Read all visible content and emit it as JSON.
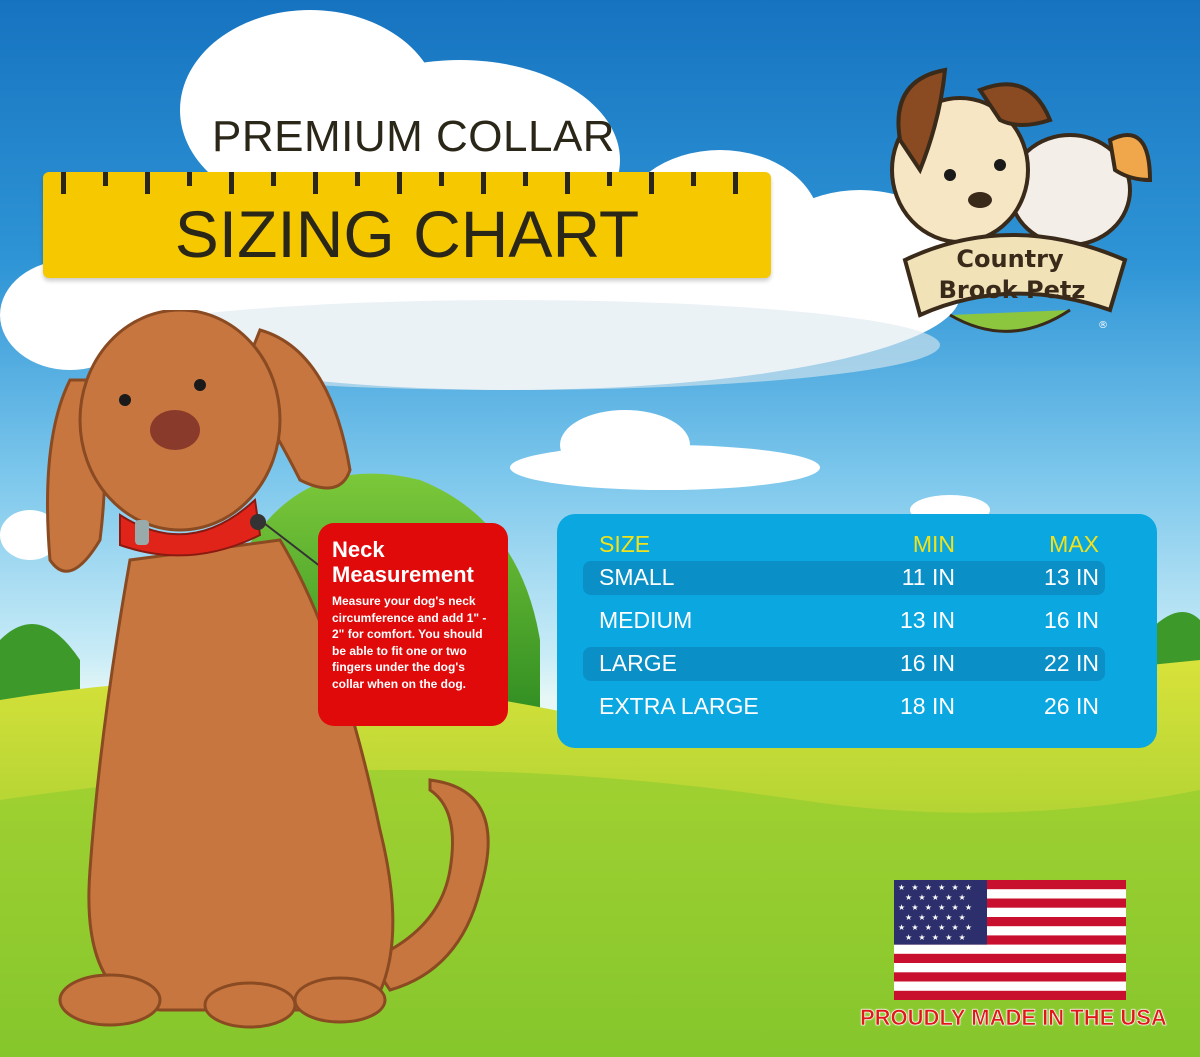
{
  "header": {
    "title_line1": "PREMIUM COLLAR",
    "title_line2": "SIZING CHART"
  },
  "logo": {
    "text_line1": "Country",
    "text_line2": "Brook Petz",
    "registered": "®"
  },
  "neck_measurement": {
    "heading": "Neck Measurement",
    "body": "Measure your dog's neck circumference and add 1\" - 2\" for comfort. You should be able to fit one or two fingers under the dog's collar when on the dog."
  },
  "size_table": {
    "headers": [
      "SIZE",
      "MIN",
      "MAX"
    ],
    "rows": [
      {
        "size": "SMALL",
        "min": "11 IN",
        "max": "13 IN"
      },
      {
        "size": "MEDIUM",
        "min": "13 IN",
        "max": "16 IN"
      },
      {
        "size": "LARGE",
        "min": "16 IN",
        "max": "22 IN"
      },
      {
        "size": "EXTRA LARGE",
        "min": "18 IN",
        "max": "26 IN"
      }
    ]
  },
  "footer": {
    "made_in": "PROUDLY MADE IN THE USA"
  },
  "colors": {
    "ruler": "#f6c800",
    "neck_box": "#e00a0a",
    "table_bg": "#0aa7e1",
    "table_header": "#f2e21a",
    "usa_text": "#e01818"
  }
}
